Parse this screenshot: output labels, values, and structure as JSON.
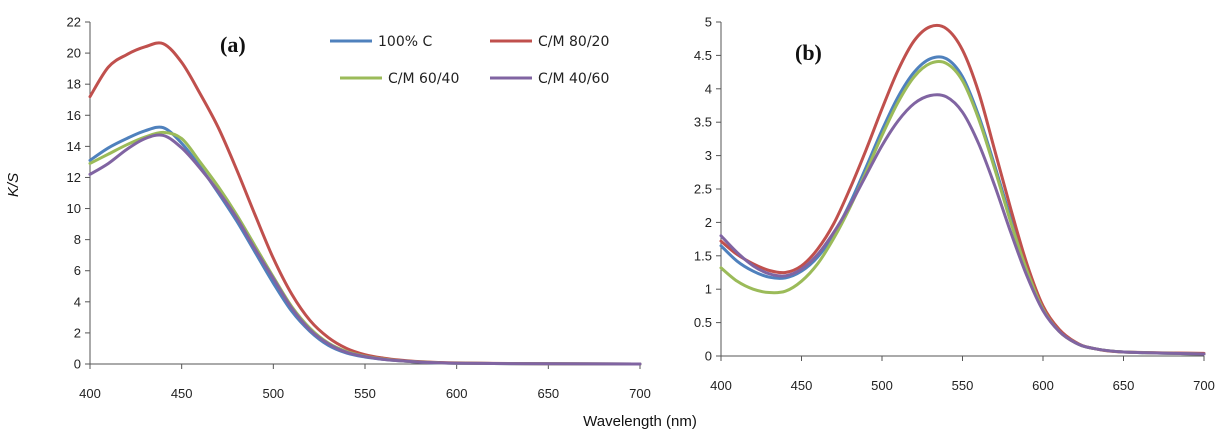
{
  "figure": {
    "xlabel": "Wavelength (nm)",
    "ylabel": "K/S"
  },
  "chart_data": [
    {
      "type": "line",
      "panel_label": "(a)",
      "xlabel": "Wavelength (nm)",
      "ylabel": "K/S",
      "xlim": [
        400,
        700
      ],
      "ylim": [
        0,
        22
      ],
      "x_ticks": [
        "400",
        "450",
        "500",
        "550",
        "600",
        "650",
        "700"
      ],
      "y_ticks": [
        "0",
        "2",
        "4",
        "6",
        "8",
        "10",
        "12",
        "14",
        "16",
        "18",
        "20",
        "22"
      ],
      "grid": false,
      "legend": "top-center",
      "x": [
        400,
        410,
        420,
        430,
        440,
        450,
        460,
        470,
        480,
        490,
        500,
        510,
        520,
        530,
        540,
        550,
        560,
        570,
        580,
        590,
        600,
        620,
        650,
        700
      ],
      "series": [
        {
          "name": "100% C",
          "color": "#4f81bd",
          "values": [
            13.1,
            13.9,
            14.5,
            15.0,
            15.2,
            14.2,
            12.7,
            11.0,
            9.2,
            7.2,
            5.2,
            3.4,
            2.1,
            1.2,
            0.7,
            0.45,
            0.3,
            0.2,
            0.12,
            0.07,
            0.05,
            0.03,
            0.02,
            0.0
          ]
        },
        {
          "name": "C/M 80/20",
          "color": "#c0504d",
          "values": [
            17.2,
            19.1,
            19.9,
            20.4,
            20.6,
            19.4,
            17.4,
            15.2,
            12.5,
            9.6,
            6.8,
            4.5,
            2.8,
            1.7,
            1.0,
            0.6,
            0.38,
            0.24,
            0.15,
            0.1,
            0.07,
            0.04,
            0.02,
            0.0
          ]
        },
        {
          "name": "C/M 60/40",
          "color": "#9bbb59",
          "values": [
            12.9,
            13.5,
            14.1,
            14.6,
            14.9,
            14.5,
            13.0,
            11.4,
            9.6,
            7.6,
            5.6,
            3.7,
            2.3,
            1.35,
            0.8,
            0.5,
            0.32,
            0.2,
            0.13,
            0.08,
            0.05,
            0.03,
            0.02,
            0.0
          ]
        },
        {
          "name": "C/M 40/60",
          "color": "#8064a2",
          "values": [
            12.2,
            12.9,
            13.8,
            14.5,
            14.7,
            13.9,
            12.6,
            11.1,
            9.4,
            7.4,
            5.5,
            3.6,
            2.2,
            1.3,
            0.75,
            0.48,
            0.3,
            0.2,
            0.12,
            0.08,
            0.05,
            0.03,
            0.02,
            0.0
          ]
        }
      ]
    },
    {
      "type": "line",
      "panel_label": "(b)",
      "xlabel": "Wavelength (nm)",
      "ylabel": "",
      "xlim": [
        400,
        700
      ],
      "ylim": [
        0,
        5
      ],
      "x_ticks": [
        "400",
        "450",
        "500",
        "550",
        "600",
        "650",
        "700"
      ],
      "y_ticks": [
        "0",
        "0.5",
        "1",
        "1.5",
        "2",
        "2.5",
        "3",
        "3.5",
        "4",
        "4.5",
        "5"
      ],
      "grid": false,
      "legend": "none",
      "x": [
        400,
        410,
        420,
        430,
        440,
        450,
        460,
        470,
        480,
        490,
        500,
        510,
        520,
        530,
        540,
        550,
        560,
        570,
        580,
        590,
        600,
        610,
        620,
        630,
        650,
        700
      ],
      "series": [
        {
          "name": "100% C",
          "color": "#4f81bd",
          "values": [
            1.65,
            1.42,
            1.27,
            1.18,
            1.17,
            1.27,
            1.48,
            1.82,
            2.28,
            2.82,
            3.38,
            3.88,
            4.25,
            4.45,
            4.45,
            4.18,
            3.6,
            2.85,
            2.05,
            1.3,
            0.72,
            0.38,
            0.2,
            0.12,
            0.06,
            0.03
          ]
        },
        {
          "name": "C/M 80/20",
          "color": "#c0504d",
          "values": [
            1.72,
            1.52,
            1.38,
            1.28,
            1.25,
            1.35,
            1.6,
            1.98,
            2.5,
            3.08,
            3.7,
            4.28,
            4.72,
            4.93,
            4.9,
            4.58,
            3.95,
            3.08,
            2.2,
            1.38,
            0.75,
            0.4,
            0.21,
            0.12,
            0.06,
            0.04
          ]
        },
        {
          "name": "C/M 60/40",
          "color": "#9bbb59",
          "values": [
            1.32,
            1.12,
            1.0,
            0.95,
            0.97,
            1.12,
            1.38,
            1.76,
            2.22,
            2.75,
            3.3,
            3.8,
            4.18,
            4.38,
            4.38,
            4.12,
            3.55,
            2.8,
            2.0,
            1.28,
            0.7,
            0.37,
            0.2,
            0.12,
            0.06,
            0.03
          ]
        },
        {
          "name": "C/M 40/60",
          "color": "#8064a2",
          "values": [
            1.8,
            1.55,
            1.35,
            1.23,
            1.2,
            1.3,
            1.52,
            1.85,
            2.25,
            2.7,
            3.15,
            3.52,
            3.78,
            3.9,
            3.88,
            3.65,
            3.18,
            2.55,
            1.85,
            1.2,
            0.68,
            0.37,
            0.2,
            0.12,
            0.06,
            0.03
          ]
        }
      ]
    }
  ]
}
